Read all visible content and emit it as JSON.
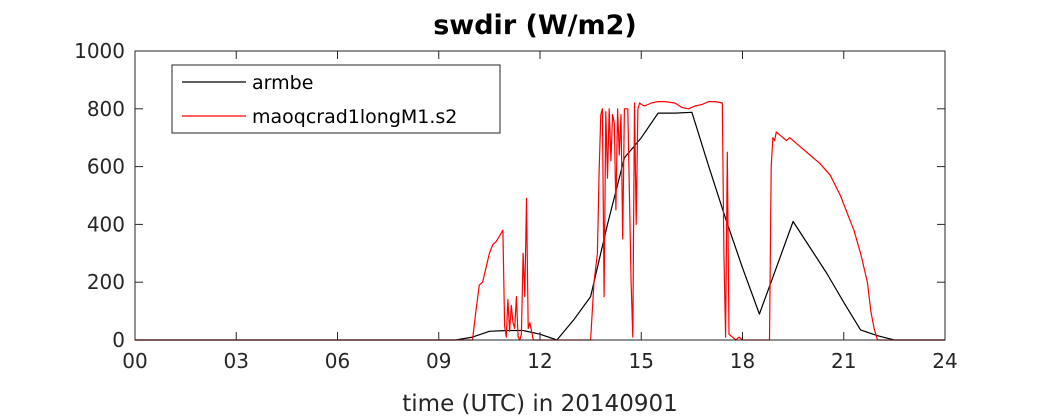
{
  "chart_data": {
    "type": "line",
    "title": "swdir  (W/m2)",
    "xlabel": "time (UTC) in 20140901",
    "ylabel": "",
    "xlim": [
      0,
      24
    ],
    "ylim": [
      0,
      1000
    ],
    "x_ticks": [
      0,
      3,
      6,
      9,
      12,
      15,
      18,
      21,
      24
    ],
    "x_tick_labels": [
      "00",
      "03",
      "06",
      "09",
      "12",
      "15",
      "18",
      "21",
      "24"
    ],
    "y_ticks": [
      0,
      200,
      400,
      600,
      800,
      1000
    ],
    "y_tick_labels": [
      "0",
      "200",
      "400",
      "600",
      "800",
      "1000"
    ],
    "grid": false,
    "legend_position": "top-left",
    "series": [
      {
        "name": "armbe",
        "color": "#000000",
        "x": [
          0,
          9.0,
          9.5,
          10.0,
          10.5,
          11.0,
          11.5,
          12.0,
          12.5,
          13.0,
          13.5,
          14.0,
          14.5,
          15.0,
          15.5,
          16.0,
          16.5,
          17.0,
          17.5,
          18.0,
          18.5,
          19.0,
          19.5,
          20.0,
          20.5,
          21.0,
          21.5,
          22.0,
          22.5,
          23.0,
          24.0
        ],
        "y": [
          0,
          0,
          0,
          10,
          30,
          33,
          33,
          20,
          0,
          70,
          150,
          400,
          630,
          700,
          785,
          785,
          788,
          600,
          420,
          250,
          90,
          250,
          410,
          320,
          230,
          130,
          35,
          15,
          0,
          0,
          0
        ]
      },
      {
        "name": "maoqcrad1longM1.s2",
        "color": "#ff0000",
        "x": [
          0,
          9.7,
          10.0,
          10.1,
          10.2,
          10.3,
          10.4,
          10.5,
          10.6,
          10.7,
          10.8,
          10.9,
          10.95,
          11.0,
          11.05,
          11.1,
          11.15,
          11.2,
          11.25,
          11.3,
          11.35,
          11.4,
          11.45,
          11.5,
          11.55,
          11.6,
          11.65,
          11.7,
          11.8,
          12.0,
          13.0,
          13.5,
          13.6,
          13.7,
          13.75,
          13.8,
          13.85,
          13.9,
          13.95,
          14.0,
          14.05,
          14.1,
          14.15,
          14.2,
          14.25,
          14.3,
          14.35,
          14.4,
          14.45,
          14.5,
          14.6,
          14.7,
          14.75,
          14.8,
          14.85,
          14.9,
          14.95,
          15.0,
          15.1,
          15.2,
          15.3,
          15.5,
          15.7,
          16.0,
          16.2,
          16.4,
          16.6,
          16.8,
          17.0,
          17.2,
          17.4,
          17.45,
          17.5,
          17.55,
          17.6,
          17.7,
          17.8,
          17.9,
          18.0,
          18.5,
          18.8,
          18.85,
          18.9,
          18.95,
          19.0,
          19.1,
          19.2,
          19.3,
          19.4,
          19.5,
          19.7,
          20.0,
          20.3,
          20.6,
          20.9,
          21.1,
          21.3,
          21.5,
          21.7,
          21.8,
          21.9,
          22.0,
          22.5,
          24.0
        ],
        "y": [
          0,
          0,
          0,
          100,
          190,
          200,
          250,
          300,
          330,
          340,
          360,
          380,
          50,
          10,
          140,
          30,
          120,
          60,
          40,
          150,
          10,
          0,
          20,
          300,
          150,
          490,
          40,
          60,
          0,
          0,
          0,
          0,
          200,
          300,
          580,
          780,
          800,
          150,
          790,
          560,
          800,
          620,
          780,
          750,
          450,
          800,
          640,
          780,
          350,
          800,
          800,
          200,
          10,
          820,
          400,
          800,
          820,
          815,
          810,
          815,
          820,
          825,
          825,
          820,
          805,
          800,
          810,
          815,
          825,
          825,
          820,
          300,
          10,
          650,
          20,
          10,
          0,
          10,
          0,
          0,
          0,
          600,
          700,
          690,
          720,
          710,
          700,
          690,
          700,
          690,
          670,
          640,
          610,
          570,
          500,
          440,
          380,
          300,
          200,
          100,
          40,
          0,
          0,
          0
        ]
      }
    ]
  }
}
